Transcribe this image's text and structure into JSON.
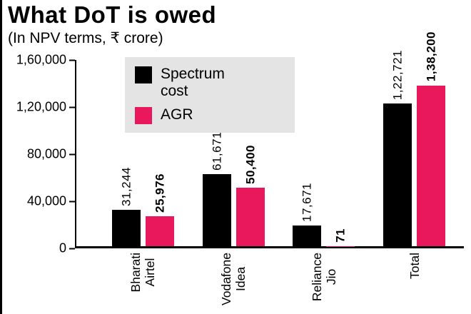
{
  "title": "What DoT is owed",
  "subtitle": "(In NPV terms, ₹ crore)",
  "colors": {
    "spectrum_black": "#000000",
    "agr_pink": "#e9185c",
    "legend_bg": "#e5e4e4",
    "axis": "#000000"
  },
  "chart_data": {
    "type": "bar",
    "title": "What DoT is owed",
    "subtitle": "(In NPV terms, ₹ crore)",
    "categories": [
      "Bharati Airtel",
      "Vodafone Idea",
      "Reliance Jio",
      "Total"
    ],
    "category_lines": [
      [
        "Bharati",
        "Airtel"
      ],
      [
        "Vodafone",
        "Idea"
      ],
      [
        "Reliance",
        "Jio"
      ],
      [
        "Total"
      ]
    ],
    "series": [
      {
        "name": "Spectrum cost",
        "color": "#000000",
        "values": [
          31244,
          61671,
          17671,
          122721
        ],
        "value_labels": [
          "31,244",
          "61,671",
          "17,671",
          "1,22,721"
        ]
      },
      {
        "name": "AGR",
        "color": "#e9185c",
        "values": [
          25976,
          50400,
          71,
          138200
        ],
        "value_labels": [
          "25,976",
          "50,400",
          "71",
          "1,38,200"
        ]
      }
    ],
    "ylim": [
      0,
      160000
    ],
    "yticks": [
      {
        "value": 0,
        "label": "0"
      },
      {
        "value": 40000,
        "label": "40,000"
      },
      {
        "value": 80000,
        "label": "80,000"
      },
      {
        "value": 120000,
        "label": "1,20,000"
      },
      {
        "value": 160000,
        "label": "1,60,000"
      }
    ],
    "grid": false,
    "legend_position": "inside-top-left"
  }
}
